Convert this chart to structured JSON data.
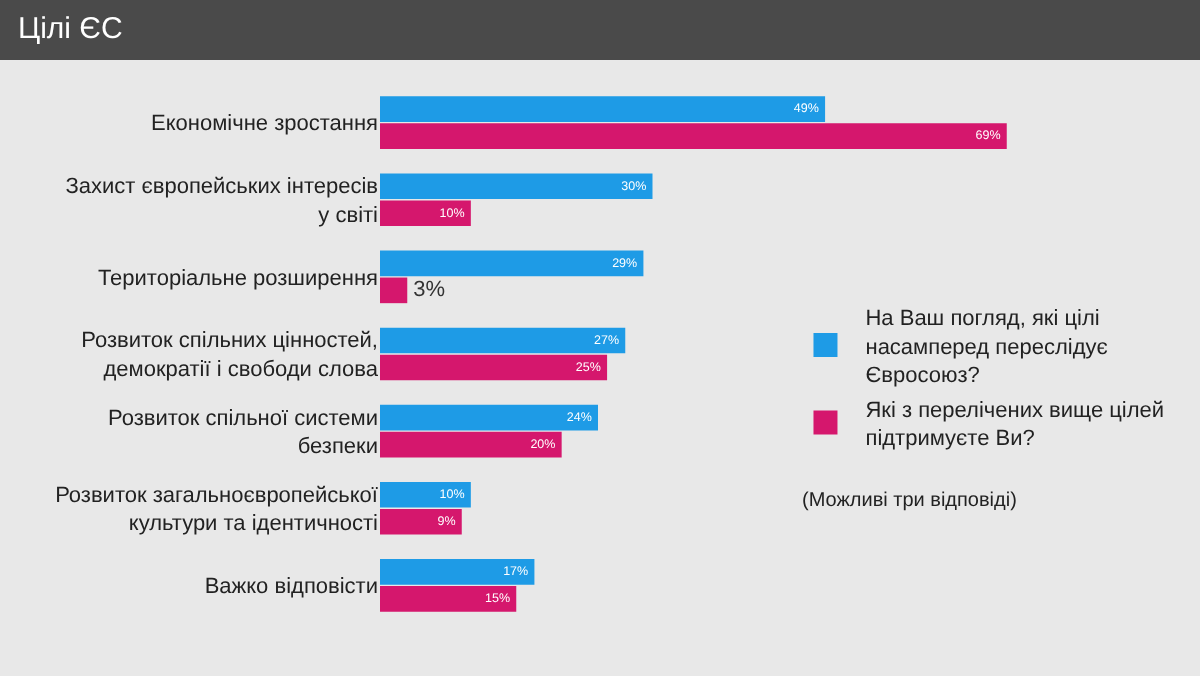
{
  "chart_data": {
    "type": "bar",
    "orientation": "horizontal",
    "title": "Цілі ЄС",
    "categories": [
      "Економічне зростання",
      "Захист європейських інтересів у світі",
      "Територіальне розширення",
      "Розвиток спільних цінностей, демократії і свободи слова",
      "Розвиток спільної системи безпеки",
      "Розвиток загальноєвропейської культури та ідентичності",
      "Важко відповісти"
    ],
    "series": [
      {
        "name": "На Ваш погляд, які цілі насамперед переслідує Євросоюз?",
        "color": "#1e9be6",
        "values": [
          49,
          30,
          29,
          27,
          24,
          10,
          17
        ],
        "value_labels": [
          "49%",
          "30%",
          "29%",
          "27%",
          "24%",
          "10%",
          "17%"
        ]
      },
      {
        "name": "Які з перелічених вище цілей підтримуєте Ви?",
        "color": "#d5176d",
        "values": [
          69,
          10,
          3,
          25,
          20,
          9,
          15
        ],
        "value_labels": [
          "69%",
          "10%",
          "3%",
          "25%",
          "20%",
          "9%",
          "15%"
        ]
      }
    ],
    "legend": "right",
    "tick_labels": "y",
    "grid": false,
    "annotations": [
      "(Можливі три відповіді)"
    ]
  }
}
